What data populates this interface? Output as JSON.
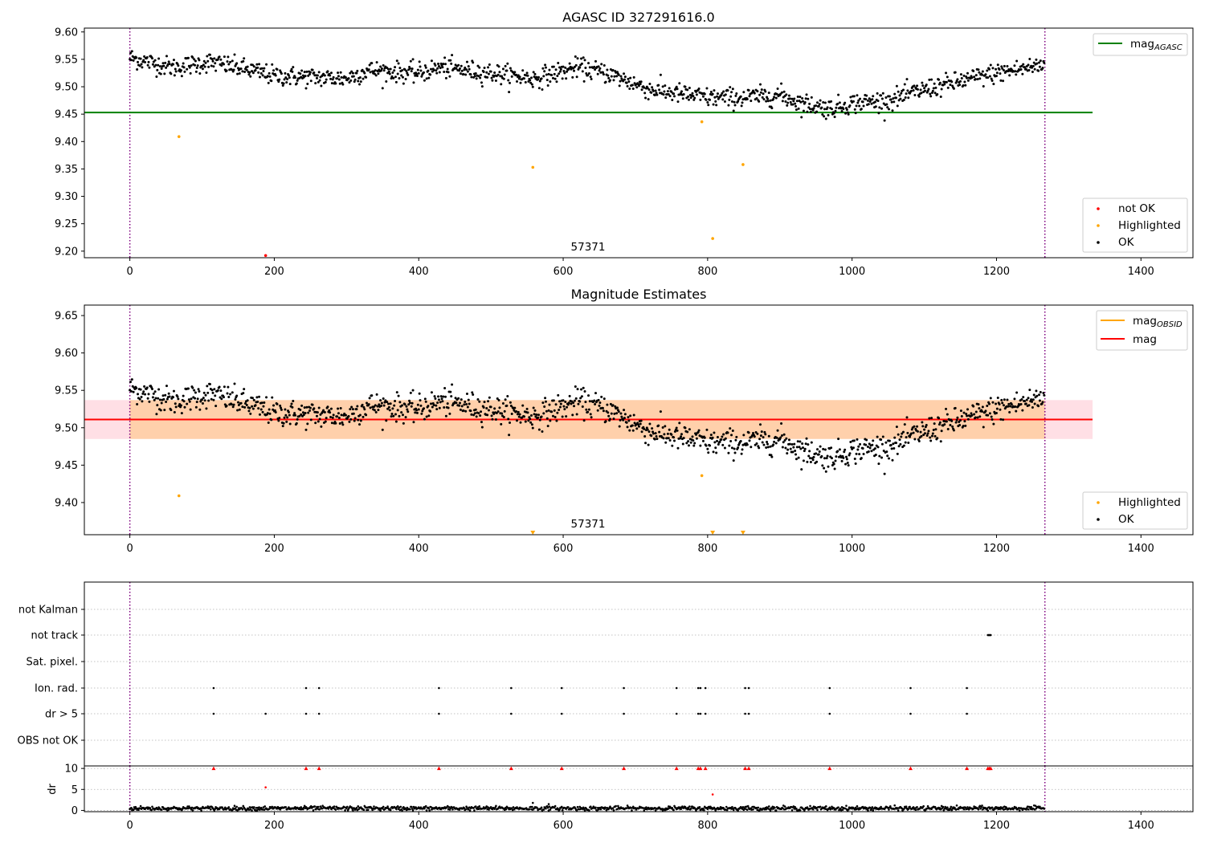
{
  "chart_data": [
    {
      "type": "scatter",
      "title": "AGASC ID 327291616.0",
      "xlabel": "",
      "ylabel": "",
      "xlim": [
        -63,
        1472
      ],
      "ylim": [
        9.188,
        9.607
      ],
      "xticks": [
        0,
        200,
        400,
        600,
        800,
        1000,
        1200,
        1400
      ],
      "yticks": [
        "9.20",
        "9.25",
        "9.30",
        "9.35",
        "9.40",
        "9.45",
        "9.50",
        "9.55",
        "9.60"
      ],
      "annotation": "57371",
      "annotation_x": 632,
      "obs_boundaries": [
        0,
        1267
      ],
      "lines": [
        {
          "name": "mag_AGASC",
          "label_main": "mag",
          "label_sub": "AGASC",
          "y": 9.453,
          "x_range": [
            -63,
            1333
          ],
          "color": "#008000"
        }
      ],
      "series": [
        {
          "name": "not OK",
          "color": "#ff0000",
          "points": [
            [
              188,
              9.192
            ]
          ]
        },
        {
          "name": "Highlighted",
          "color": "#ffa500",
          "points": [
            [
              68,
              9.409
            ],
            [
              558,
              9.353
            ],
            [
              792,
              9.436
            ],
            [
              807,
              9.223
            ],
            [
              849,
              9.358
            ]
          ]
        },
        {
          "name": "OK",
          "color": "#000000",
          "trend": [
            [
              0,
              9.553
            ],
            [
              60,
              9.535
            ],
            [
              110,
              9.545
            ],
            [
              150,
              9.535
            ],
            [
              200,
              9.52
            ],
            [
              300,
              9.515
            ],
            [
              330,
              9.53
            ],
            [
              400,
              9.525
            ],
            [
              430,
              9.535
            ],
            [
              500,
              9.525
            ],
            [
              560,
              9.515
            ],
            [
              620,
              9.535
            ],
            [
              660,
              9.525
            ],
            [
              720,
              9.495
            ],
            [
              800,
              9.48
            ],
            [
              850,
              9.48
            ],
            [
              900,
              9.485
            ],
            [
              930,
              9.47
            ],
            [
              970,
              9.46
            ],
            [
              1000,
              9.47
            ],
            [
              1050,
              9.475
            ],
            [
              1100,
              9.495
            ],
            [
              1150,
              9.51
            ],
            [
              1200,
              9.525
            ],
            [
              1267,
              9.54
            ]
          ],
          "scatter": 0.012,
          "n": 1267
        }
      ],
      "legend": [
        {
          "label": "mag",
          "sub": "AGASC",
          "kind": "line",
          "color": "#008000",
          "position": "top-right"
        },
        {
          "label": "not OK",
          "kind": "marker",
          "color": "#ff0000",
          "position": "bottom-right"
        },
        {
          "label": "Highlighted",
          "kind": "marker",
          "color": "#ffa500",
          "position": "bottom-right"
        },
        {
          "label": "OK",
          "kind": "marker",
          "color": "#000000",
          "position": "bottom-right"
        }
      ]
    },
    {
      "type": "scatter",
      "title": "Magnitude Estimates",
      "xlabel": "",
      "ylabel": "",
      "xlim": [
        -63,
        1472
      ],
      "ylim": [
        9.357,
        9.664
      ],
      "xticks": [
        0,
        200,
        400,
        600,
        800,
        1000,
        1200,
        1400
      ],
      "yticks": [
        "9.40",
        "9.45",
        "9.50",
        "9.55",
        "9.60",
        "9.65"
      ],
      "annotation": "57371",
      "annotation_x": 632,
      "obs_boundaries": [
        0,
        1267
      ],
      "bands": [
        {
          "name": "mag band",
          "y_range": [
            9.485,
            9.537
          ],
          "x_range": [
            -63,
            1333
          ],
          "color": "#ffc0cb",
          "opacity": 0.5
        },
        {
          "name": "mag_OBSID band",
          "y_range": [
            9.485,
            9.537
          ],
          "x_range": [
            0,
            1267
          ],
          "color": "#ffa500",
          "opacity": 0.25
        }
      ],
      "lines": [
        {
          "name": "mag_OBSID",
          "label_main": "mag",
          "label_sub": "OBSID",
          "y": 9.511,
          "x_range": [
            0,
            1267
          ],
          "color": "#ffa500"
        },
        {
          "name": "mag",
          "label_main": "mag",
          "y": 9.511,
          "x_range": [
            -63,
            1333
          ],
          "color": "#ff0000"
        }
      ],
      "series": [
        {
          "name": "Highlighted",
          "color": "#ffa500",
          "points": [
            [
              68,
              9.409
            ],
            [
              792,
              9.436
            ]
          ],
          "below_axis": [
            558,
            807,
            849
          ]
        },
        {
          "name": "OK",
          "color": "#000000",
          "same_as_panel": 0
        }
      ],
      "legend": [
        {
          "label": "mag",
          "sub": "OBSID",
          "kind": "line",
          "color": "#ffa500",
          "position": "top-right"
        },
        {
          "label": "mag",
          "kind": "line",
          "color": "#ff0000",
          "position": "top-right"
        },
        {
          "label": "Highlighted",
          "kind": "marker",
          "color": "#ffa500",
          "position": "bottom-right"
        },
        {
          "label": "OK",
          "kind": "marker",
          "color": "#000000",
          "position": "bottom-right"
        }
      ]
    },
    {
      "type": "scatter",
      "title": "",
      "xlabel": "",
      "ylabel": "",
      "xlim": [
        -63,
        1472
      ],
      "categories": [
        "not Kalman",
        "not track",
        "Sat. pixel.",
        "Ion. rad.",
        "dr > 5",
        "OBS not OK"
      ],
      "grid": true,
      "obs_boundaries": [
        0,
        1267
      ],
      "flag_events": {
        "not track": [
          1188,
          1189,
          1190,
          1191,
          1192
        ],
        "Ion. rad.": [
          116,
          244,
          262,
          428,
          528,
          598,
          684,
          757,
          787,
          790,
          797,
          852,
          857,
          969,
          1081,
          1159
        ],
        "dr > 5": [
          116,
          188,
          244,
          262,
          428,
          528,
          598,
          684,
          757,
          787,
          790,
          797,
          852,
          857,
          969,
          1081,
          1159
        ]
      }
    },
    {
      "type": "scatter",
      "title": "",
      "xlabel": "",
      "ylabel": "dr",
      "xlim": [
        -63,
        1472
      ],
      "ylim": [
        -0.3,
        10.6
      ],
      "xticks": [
        0,
        200,
        400,
        600,
        800,
        1000,
        1200,
        1400
      ],
      "yticks": [
        "0",
        "5",
        "10"
      ],
      "grid": true,
      "obs_boundaries": [
        0,
        1267
      ],
      "series": [
        {
          "name": "dr",
          "color": "#000000",
          "baseline": 0.5,
          "scatter": 0.25,
          "n": 1267
        },
        {
          "name": "dr capped",
          "color": "#ff0000",
          "marker": "triangle",
          "y": 10,
          "x": [
            116,
            244,
            262,
            428,
            528,
            598,
            684,
            757,
            787,
            790,
            797,
            852,
            857,
            969,
            1081,
            1159,
            1188,
            1190,
            1192
          ]
        },
        {
          "name": "dr high",
          "color": "#ff0000",
          "points": [
            [
              188,
              5.5
            ],
            [
              807,
              3.8
            ]
          ]
        },
        {
          "name": "dr moderate",
          "color": "#000000",
          "points": [
            [
              558,
              1.8
            ],
            [
              580,
              1.5
            ]
          ]
        }
      ]
    }
  ]
}
